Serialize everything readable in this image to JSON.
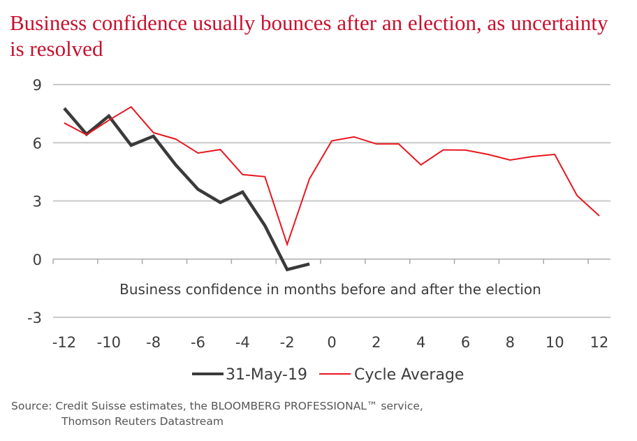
{
  "title": "Business confidence usually bounces after an election, as uncertainty is resolved",
  "colors": {
    "title": "#c8102e",
    "series_black": "#3a3a3a",
    "series_red": "#e8161f",
    "grid": "#c8c8c8",
    "text": "#3c3c3c"
  },
  "chart_data": {
    "type": "line",
    "title": "Business confidence usually bounces after an election, as uncertainty is resolved",
    "xlabel": "Business confidence in months before and after the election",
    "ylabel": "",
    "x": [
      -12,
      -11,
      -10,
      -9,
      -8,
      -7,
      -6,
      -5,
      -4,
      -3,
      -2,
      -1,
      0,
      1,
      2,
      3,
      4,
      5,
      6,
      7,
      8,
      9,
      10,
      11,
      12
    ],
    "xtick_labels": [
      "-12",
      "-10",
      "-8",
      "-6",
      "-4",
      "-2",
      "0",
      "2",
      "4",
      "6",
      "8",
      "10",
      "12"
    ],
    "ytick_labels": [
      "9",
      "6",
      "3",
      "0",
      "-3"
    ],
    "ylim": [
      -3,
      9
    ],
    "grid": true,
    "legend_position": "bottom",
    "series": [
      {
        "name": "31-May-19",
        "color": "#3a3a3a",
        "values": [
          7.78,
          6.44,
          7.38,
          5.87,
          6.34,
          4.86,
          3.6,
          2.92,
          3.46,
          1.73,
          -0.54,
          -0.25,
          null,
          null,
          null,
          null,
          null,
          null,
          null,
          null,
          null,
          null,
          null,
          null,
          null
        ]
      },
      {
        "name": "Cycle Average",
        "color": "#e8161f",
        "values": [
          7.02,
          6.41,
          7.16,
          7.85,
          6.52,
          6.19,
          5.47,
          5.65,
          4.36,
          4.25,
          0.76,
          4.14,
          6.1,
          6.3,
          5.94,
          5.94,
          4.86,
          5.63,
          5.62,
          5.4,
          5.11,
          5.29,
          5.4,
          3.28,
          2.23
        ]
      }
    ]
  },
  "legend": {
    "items": [
      "31-May-19",
      "Cycle Average"
    ]
  },
  "source": {
    "line1": "Source: Credit Suisse estimates, the BLOOMBERG PROFESSIONAL™ service,",
    "line2": "Thomson Reuters Datastream"
  }
}
